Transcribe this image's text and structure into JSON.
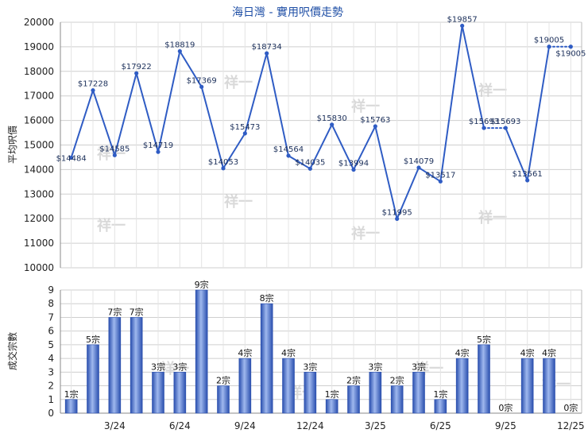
{
  "chart_data": [
    {
      "type": "line",
      "title": "海日灣 - 實用呎價走勢",
      "ylabel": "平均呎價",
      "ylim": [
        10000,
        20000
      ],
      "yticks": [
        10000,
        11000,
        12000,
        13000,
        14000,
        15000,
        16000,
        17000,
        18000,
        19000,
        20000
      ],
      "grid": true,
      "color": "#2f5cc4",
      "values": [
        14484,
        17228,
        14585,
        17922,
        14719,
        18819,
        17369,
        14053,
        15473,
        18734,
        14564,
        14035,
        15830,
        13994,
        15763,
        11995,
        14079,
        13517,
        19857,
        15693,
        15693,
        13561,
        19005,
        19005
      ],
      "labels": [
        "$14484",
        "$17228",
        "$14585",
        "$17922",
        "$14719",
        "$18819",
        "$17369",
        "$14053",
        "$15473",
        "$18734",
        "$14564",
        "$14035",
        "$15830",
        "$13994",
        "$15763",
        "$11995",
        "$14079",
        "$13517",
        "$19857",
        "$15693",
        "$15693",
        "$13561",
        "$19005",
        "$19005"
      ],
      "dotted_segments": [
        [
          19,
          20
        ],
        [
          22,
          23
        ]
      ]
    },
    {
      "type": "bar",
      "ylabel": "成交宗數",
      "ylim": [
        0,
        9
      ],
      "yticks": [
        0,
        1,
        2,
        3,
        4,
        5,
        6,
        7,
        8,
        9
      ],
      "grid": true,
      "color": "#3f6fd0",
      "categories": [
        "",
        "",
        "3/24",
        "",
        "",
        "6/24",
        "",
        "",
        "9/24",
        "",
        "",
        "12/24",
        "",
        "",
        "3/25",
        "",
        "",
        "6/25",
        "",
        "",
        "9/25",
        "",
        "",
        "12/25"
      ],
      "values": [
        1,
        5,
        7,
        7,
        3,
        3,
        9,
        2,
        4,
        8,
        4,
        3,
        1,
        2,
        3,
        2,
        3,
        1,
        4,
        5,
        0,
        4,
        4,
        0
      ],
      "labels": [
        "1宗",
        "5宗",
        "7宗",
        "7宗",
        "3宗",
        "3宗",
        "9宗",
        "2宗",
        "4宗",
        "8宗",
        "4宗",
        "3宗",
        "1宗",
        "2宗",
        "3宗",
        "2宗",
        "3宗",
        "1宗",
        "4宗",
        "5宗",
        "0宗",
        "4宗",
        "4宗",
        "0宗"
      ]
    }
  ],
  "watermark": "祥一"
}
